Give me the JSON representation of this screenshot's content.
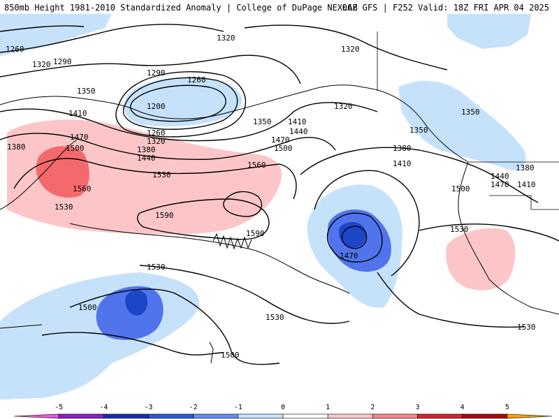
{
  "header": {
    "left_title": "850mb Height 1981-2010 Standardized Anomaly | College of DuPage NEXLAB",
    "right_title": "06Z GFS | F252 Valid: 18Z FRI APR 04 2025"
  },
  "colors": {
    "neg1": "#c6e2fb",
    "neg2": "#4f74ec",
    "neg3": "#1d45c8",
    "pos1": "#fcc6c8",
    "pos2": "#f46a6c",
    "coast": "#000000"
  },
  "contour_labels": [
    "1320",
    "1260",
    "1320",
    "1290",
    "1320",
    "1290",
    "1260",
    "1350",
    "1200",
    "1260",
    "1320",
    "1410",
    "1470",
    "1500",
    "1380",
    "1380",
    "1440",
    "1350",
    "1410",
    "1440",
    "1470",
    "1500",
    "1530",
    "1560",
    "1560",
    "1530",
    "1590",
    "1590",
    "1380",
    "1410",
    "1320",
    "1350",
    "1350",
    "1440",
    "1470",
    "1410",
    "1380",
    "1500",
    "1530",
    "1470",
    "1530",
    "1500",
    "1530",
    "1500",
    "1530"
  ],
  "colorbar": {
    "ticks": [
      "-5",
      "-4",
      "-3",
      "-2",
      "-1",
      "0",
      "1",
      "2",
      "3",
      "4",
      "5"
    ],
    "colors": [
      "#e05cd8",
      "#8a1fc0",
      "#1a2fa8",
      "#2b5cd0",
      "#5f8ff0",
      "#c6e2fb",
      "#ffffff",
      "#fcc6c8",
      "#f08a8c",
      "#d42428",
      "#a80a0a",
      "#f5a300"
    ]
  }
}
